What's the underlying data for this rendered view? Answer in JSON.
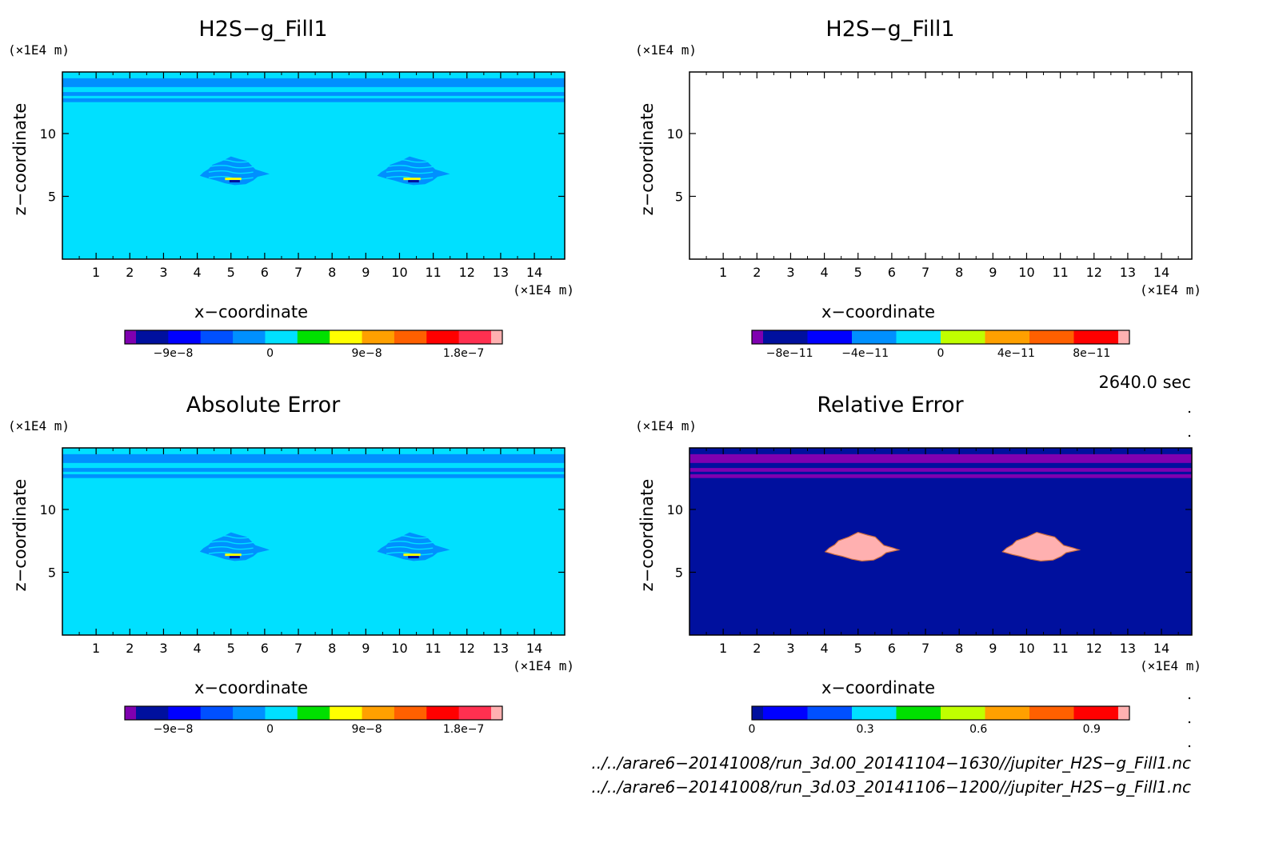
{
  "panels": [
    {
      "title": "H2S−g_Fill1",
      "xlabel": "x−coordinate",
      "ylabel": "z−coordinate",
      "x_unit": "(×1E4 m)",
      "y_unit": "(×1E4 m)",
      "x_ticks": [
        "1",
        "2",
        "3",
        "4",
        "5",
        "6",
        "7",
        "8",
        "9",
        "10",
        "11",
        "12",
        "13",
        "14"
      ],
      "y_ticks": [
        "5",
        "10"
      ],
      "field": {
        "background": "#00e0ff",
        "bands": "#0090ff",
        "blob": "#0090ff",
        "blob_style": "contour"
      },
      "colorbar": {
        "colors": [
          "#7f00b0",
          "#00109e",
          "#0000ff",
          "#0050ff",
          "#0090ff",
          "#00e0ff",
          "#00e000",
          "#ffff00",
          "#ffa000",
          "#ff6000",
          "#ff0000",
          "#ff3050",
          "#ffb0b0"
        ],
        "labels": [
          "−9e−8",
          "0",
          "9e−8",
          "1.8e−7"
        ],
        "label_values": [
          -9e-08,
          0,
          9e-08,
          1.8e-07
        ],
        "range": [
          -1.35e-07,
          2.16e-07
        ]
      }
    },
    {
      "title": "H2S−g_Fill1",
      "xlabel": "x−coordinate",
      "ylabel": "z−coordinate",
      "x_unit": "(×1E4 m)",
      "y_unit": "(×1E4 m)",
      "x_ticks": [
        "1",
        "2",
        "3",
        "4",
        "5",
        "6",
        "7",
        "8",
        "9",
        "10",
        "11",
        "12",
        "13",
        "14"
      ],
      "y_ticks": [
        "5",
        "10"
      ],
      "field": {
        "background": "#ffffff",
        "bands": "",
        "blob": "",
        "blob_style": "none"
      },
      "colorbar": {
        "colors": [
          "#7f00b0",
          "#00109e",
          "#0000ff",
          "#0090ff",
          "#00e0ff",
          "#c0ff00",
          "#ffa000",
          "#ff6000",
          "#ff0000",
          "#ffb0b0"
        ],
        "labels": [
          "−8e−11",
          "−4e−11",
          "0",
          "4e−11",
          "8e−11"
        ],
        "label_values": [
          -8e-11,
          -4e-11,
          0,
          4e-11,
          8e-11
        ],
        "range": [
          -1e-10,
          1e-10
        ]
      }
    },
    {
      "title": "Absolute Error",
      "xlabel": "x−coordinate",
      "ylabel": "z−coordinate",
      "x_unit": "(×1E4 m)",
      "y_unit": "(×1E4 m)",
      "x_ticks": [
        "1",
        "2",
        "3",
        "4",
        "5",
        "6",
        "7",
        "8",
        "9",
        "10",
        "11",
        "12",
        "13",
        "14"
      ],
      "y_ticks": [
        "5",
        "10"
      ],
      "field": {
        "background": "#00e0ff",
        "bands": "#0090ff",
        "blob": "#0090ff",
        "blob_style": "contour"
      },
      "colorbar": {
        "colors": [
          "#7f00b0",
          "#00109e",
          "#0000ff",
          "#0050ff",
          "#0090ff",
          "#00e0ff",
          "#00e000",
          "#ffff00",
          "#ffa000",
          "#ff6000",
          "#ff0000",
          "#ff3050",
          "#ffb0b0"
        ],
        "labels": [
          "−9e−8",
          "0",
          "9e−8",
          "1.8e−7"
        ],
        "label_values": [
          -9e-08,
          0,
          9e-08,
          1.8e-07
        ],
        "range": [
          -1.35e-07,
          2.16e-07
        ]
      }
    },
    {
      "title": "Relative Error",
      "xlabel": "x−coordinate",
      "ylabel": "z−coordinate",
      "x_unit": "(×1E4 m)",
      "y_unit": "(×1E4 m)",
      "x_ticks": [
        "1",
        "2",
        "3",
        "4",
        "5",
        "6",
        "7",
        "8",
        "9",
        "10",
        "11",
        "12",
        "13",
        "14"
      ],
      "y_ticks": [
        "5",
        "10"
      ],
      "field": {
        "background": "#00109e",
        "bands": "#7f00b0",
        "blob": "#ffb0b0",
        "blob_style": "solid"
      },
      "colorbar": {
        "colors": [
          "#00109e",
          "#0000ff",
          "#0050ff",
          "#00e0ff",
          "#00e000",
          "#c0ff00",
          "#ffa000",
          "#ff6000",
          "#ff0000",
          "#ffb0b0"
        ],
        "labels": [
          "0",
          "0.3",
          "0.6",
          "0.9"
        ],
        "label_values": [
          0,
          0.3,
          0.6,
          0.9
        ],
        "range": [
          0,
          1.0
        ]
      }
    }
  ],
  "time_label": "2640.0 sec",
  "file_paths": [
    "../../arare6−20141008/run_3d.00_20141104−1630//jupiter_H2S−g_Fill1.nc",
    "../../arare6−20141008/run_3d.03_20141106−1200//jupiter_H2S−g_Fill1.nc"
  ],
  "chart_data": [
    {
      "type": "heatmap",
      "title": "H2S−g_Fill1",
      "xlabel": "x−coordinate",
      "ylabel": "z−coordinate",
      "x_unit": "(×1E4 m)",
      "y_unit": "(×1E4 m)",
      "xlim": [
        0,
        14.9
      ],
      "ylim": [
        0,
        14.9
      ],
      "x_ticks": [
        1,
        2,
        3,
        4,
        5,
        6,
        7,
        8,
        9,
        10,
        11,
        12,
        13,
        14
      ],
      "y_ticks": [
        5,
        10
      ],
      "colorbar_ticks": [
        -9e-08,
        0,
        9e-08,
        1.8e-07
      ],
      "background_value": 0,
      "features": [
        {
          "kind": "band",
          "z": [
            13.7,
            14.4
          ]
        },
        {
          "kind": "band",
          "z": [
            13.0,
            13.3
          ]
        },
        {
          "kind": "band",
          "z": [
            12.5,
            12.8
          ]
        },
        {
          "kind": "cloud",
          "x_center": 5.0,
          "z_center": 7.0,
          "x_extent": [
            3.5,
            5.7
          ],
          "z_extent": [
            6.0,
            8.3
          ]
        },
        {
          "kind": "cloud",
          "x_center": 10.3,
          "z_center": 7.0,
          "x_extent": [
            9.3,
            11.6
          ],
          "z_extent": [
            6.0,
            8.3
          ]
        }
      ]
    },
    {
      "type": "heatmap",
      "title": "H2S−g_Fill1",
      "xlabel": "x−coordinate",
      "ylabel": "z−coordinate",
      "x_unit": "(×1E4 m)",
      "y_unit": "(×1E4 m)",
      "xlim": [
        0,
        14.9
      ],
      "ylim": [
        0,
        14.9
      ],
      "x_ticks": [
        1,
        2,
        3,
        4,
        5,
        6,
        7,
        8,
        9,
        10,
        11,
        12,
        13,
        14
      ],
      "y_ticks": [
        5,
        10
      ],
      "colorbar_ticks": [
        -8e-11,
        -4e-11,
        0,
        4e-11,
        8e-11
      ],
      "features": []
    },
    {
      "type": "heatmap",
      "title": "Absolute Error",
      "xlabel": "x−coordinate",
      "ylabel": "z−coordinate",
      "x_unit": "(×1E4 m)",
      "y_unit": "(×1E4 m)",
      "xlim": [
        0,
        14.9
      ],
      "ylim": [
        0,
        14.9
      ],
      "x_ticks": [
        1,
        2,
        3,
        4,
        5,
        6,
        7,
        8,
        9,
        10,
        11,
        12,
        13,
        14
      ],
      "y_ticks": [
        5,
        10
      ],
      "colorbar_ticks": [
        -9e-08,
        0,
        9e-08,
        1.8e-07
      ],
      "background_value": 0,
      "features": [
        {
          "kind": "band",
          "z": [
            13.7,
            14.4
          ]
        },
        {
          "kind": "band",
          "z": [
            13.0,
            13.3
          ]
        },
        {
          "kind": "band",
          "z": [
            12.5,
            12.8
          ]
        },
        {
          "kind": "cloud",
          "x_center": 5.0,
          "z_center": 7.0,
          "x_extent": [
            3.5,
            5.7
          ],
          "z_extent": [
            6.0,
            8.3
          ]
        },
        {
          "kind": "cloud",
          "x_center": 10.3,
          "z_center": 7.0,
          "x_extent": [
            9.3,
            11.6
          ],
          "z_extent": [
            6.0,
            8.3
          ]
        }
      ]
    },
    {
      "type": "heatmap",
      "title": "Relative Error",
      "xlabel": "x−coordinate",
      "ylabel": "z−coordinate",
      "x_unit": "(×1E4 m)",
      "y_unit": "(×1E4 m)",
      "xlim": [
        0,
        14.9
      ],
      "ylim": [
        0,
        14.9
      ],
      "x_ticks": [
        1,
        2,
        3,
        4,
        5,
        6,
        7,
        8,
        9,
        10,
        11,
        12,
        13,
        14
      ],
      "y_ticks": [
        5,
        10
      ],
      "colorbar_ticks": [
        0,
        0.3,
        0.6,
        0.9
      ],
      "background_value": 0,
      "features": [
        {
          "kind": "band",
          "z": [
            13.7,
            14.4
          ]
        },
        {
          "kind": "band",
          "z": [
            13.0,
            13.3
          ]
        },
        {
          "kind": "band",
          "z": [
            12.5,
            12.8
          ]
        },
        {
          "kind": "cloud",
          "value": 1.0,
          "x_center": 5.0,
          "z_center": 7.0,
          "x_extent": [
            3.5,
            5.7
          ],
          "z_extent": [
            6.0,
            8.3
          ]
        },
        {
          "kind": "cloud",
          "value": 1.0,
          "x_center": 10.3,
          "z_center": 7.0,
          "x_extent": [
            9.3,
            11.6
          ],
          "z_extent": [
            6.0,
            8.3
          ]
        }
      ]
    }
  ]
}
